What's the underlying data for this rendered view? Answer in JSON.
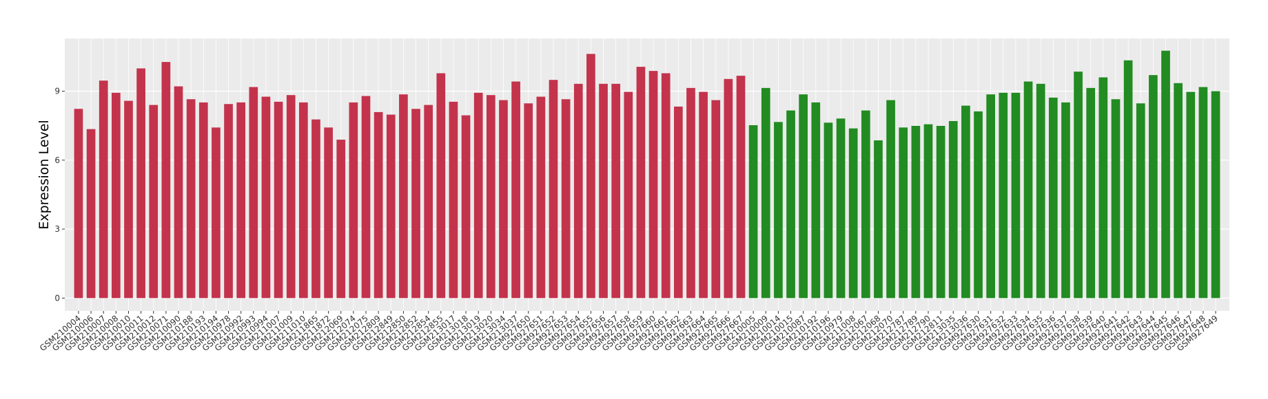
{
  "chart_data": {
    "type": "bar",
    "y_label": "Expression Level",
    "grid": true,
    "ylim": [
      -0.56,
      11.29
    ],
    "yticks": [
      0,
      3,
      6,
      9
    ],
    "series": [
      {
        "color": "#c3334c",
        "categories": [
          "GSM210004",
          "GSM210006",
          "GSM210007",
          "GSM210008",
          "GSM210010",
          "GSM210011",
          "GSM210012",
          "GSM210071",
          "GSM210090",
          "GSM210188",
          "GSM210193",
          "GSM210194",
          "GSM210978",
          "GSM210992",
          "GSM210993",
          "GSM210994",
          "GSM211007",
          "GSM211009",
          "GSM211010",
          "GSM211865",
          "GSM211872",
          "GSM212069",
          "GSM212074",
          "GSM212075",
          "GSM212809",
          "GSM212849",
          "GSM212850",
          "GSM212852",
          "GSM212854",
          "GSM212855",
          "GSM213017",
          "GSM213018",
          "GSM213019",
          "GSM213020",
          "GSM213034",
          "GSM213037",
          "GSM927650",
          "GSM927651",
          "GSM927652",
          "GSM927653",
          "GSM927654",
          "GSM927655",
          "GSM927656",
          "GSM927657",
          "GSM927658",
          "GSM927659",
          "GSM927660",
          "GSM927661",
          "GSM927662",
          "GSM927663",
          "GSM927664",
          "GSM927665",
          "GSM927666",
          "GSM927667"
        ],
        "values": [
          8.23,
          7.35,
          9.46,
          8.93,
          8.58,
          9.99,
          8.4,
          10.27,
          9.21,
          8.65,
          8.51,
          7.42,
          8.44,
          8.51,
          9.18,
          8.76,
          8.54,
          8.83,
          8.51,
          7.77,
          7.42,
          6.89,
          8.51,
          8.79,
          8.09,
          7.98,
          8.86,
          8.23,
          8.4,
          9.78,
          8.54,
          7.95,
          8.93,
          8.83,
          8.61,
          9.42,
          8.47,
          8.76,
          9.49,
          8.65,
          9.32,
          10.62,
          9.32,
          9.32,
          8.97,
          10.06,
          9.88,
          9.78,
          8.33,
          9.14,
          8.97,
          8.61,
          9.53,
          9.67
        ]
      },
      {
        "color": "#228b22",
        "categories": [
          "GSM210005",
          "GSM210009",
          "GSM210014",
          "GSM210015",
          "GSM210087",
          "GSM210192",
          "GSM210196",
          "GSM210979",
          "GSM211008",
          "GSM212067",
          "GSM212068",
          "GSM212070",
          "GSM212787",
          "GSM212789",
          "GSM212790",
          "GSM212811",
          "GSM213035",
          "GSM213036",
          "GSM927630",
          "GSM927631",
          "GSM927632",
          "GSM927633",
          "GSM927634",
          "GSM927635",
          "GSM927636",
          "GSM927637",
          "GSM927638",
          "GSM927639",
          "GSM927640",
          "GSM927641",
          "GSM927642",
          "GSM927643",
          "GSM927644",
          "GSM927645",
          "GSM927646",
          "GSM927647",
          "GSM927648",
          "GSM927649"
        ],
        "values": [
          7.52,
          9.14,
          7.66,
          8.16,
          8.86,
          8.51,
          7.63,
          7.81,
          7.38,
          8.16,
          6.86,
          8.61,
          7.42,
          7.49,
          7.56,
          7.49,
          7.7,
          8.37,
          8.12,
          8.86,
          8.93,
          8.93,
          9.42,
          9.32,
          8.72,
          8.51,
          9.85,
          9.14,
          9.6,
          8.65,
          10.34,
          8.47,
          9.7,
          10.76,
          9.35,
          8.97,
          9.18,
          9.0
        ]
      }
    ]
  }
}
